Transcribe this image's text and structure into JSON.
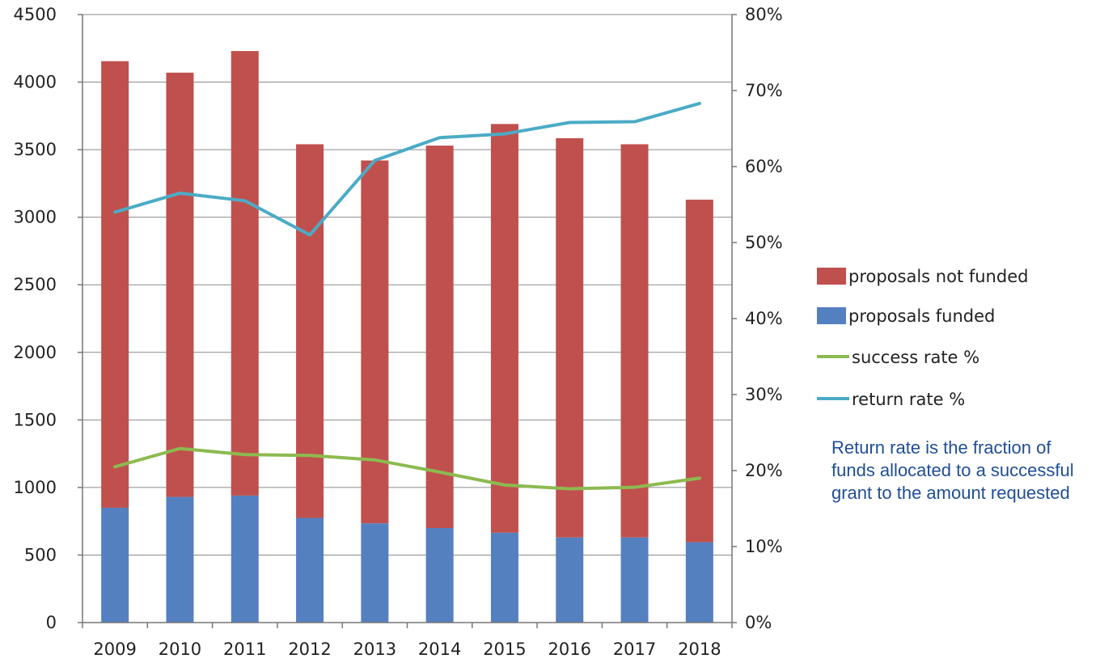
{
  "chart_data": {
    "type": "bar",
    "stacked": true,
    "categories": [
      "2009",
      "2010",
      "2011",
      "2012",
      "2013",
      "2014",
      "2015",
      "2016",
      "2017",
      "2018"
    ],
    "series": [
      {
        "name": "proposals funded",
        "kind": "bar",
        "axis": "left",
        "color": "#5580c0",
        "values": [
          850,
          930,
          940,
          775,
          735,
          700,
          665,
          630,
          630,
          595
        ]
      },
      {
        "name": "proposals not funded",
        "kind": "bar",
        "axis": "left",
        "color": "#c0504d",
        "values": [
          3305,
          3140,
          3290,
          2765,
          2685,
          2830,
          3025,
          2955,
          2910,
          2535
        ]
      },
      {
        "name": "success rate %",
        "kind": "line",
        "axis": "right",
        "color": "#8cba50",
        "values": [
          20.5,
          22.9,
          22.1,
          22.0,
          21.4,
          19.8,
          18.1,
          17.6,
          17.8,
          19.0
        ]
      },
      {
        "name": "return rate %",
        "kind": "line",
        "axis": "right",
        "color": "#4babc6",
        "values": [
          54.0,
          56.5,
          55.5,
          51.0,
          60.8,
          63.8,
          64.3,
          65.8,
          65.9,
          68.3
        ]
      }
    ],
    "ylim": [
      0,
      4500
    ],
    "yticks": [
      0,
      500,
      1000,
      1500,
      2000,
      2500,
      3000,
      3500,
      4000,
      4500
    ],
    "y2lim": [
      0,
      80
    ],
    "y2ticks": [
      "0%",
      "10%",
      "20%",
      "30%",
      "40%",
      "50%",
      "60%",
      "70%",
      "80%"
    ],
    "legend_position": "right",
    "legend": [
      {
        "label": "proposals not funded",
        "kind": "bar",
        "color": "#c0504d"
      },
      {
        "label": "proposals funded",
        "kind": "bar",
        "color": "#5580c0"
      },
      {
        "label": "success rate %",
        "kind": "line",
        "color": "#8cba50"
      },
      {
        "label": "return rate %",
        "kind": "line",
        "color": "#4babc6"
      }
    ],
    "grid": true,
    "annotation": "Return rate is the fraction of funds allocated to a successful grant to the amount requested"
  }
}
